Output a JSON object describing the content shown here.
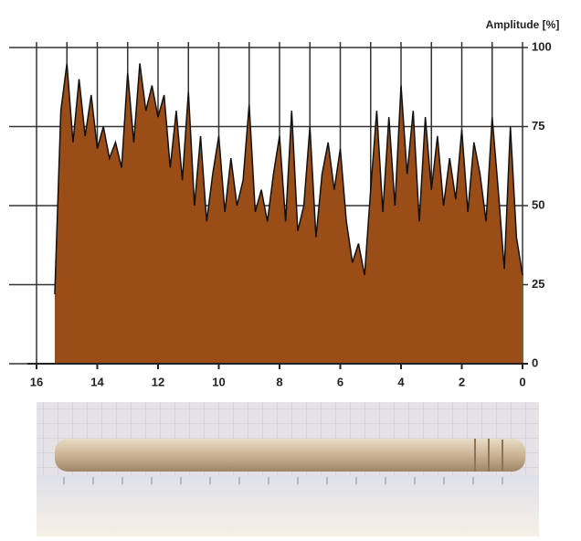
{
  "chart_data": {
    "type": "area",
    "y_label": "Amplitude [%]",
    "color": "#9a4d16",
    "line_color": "#111111",
    "x": [
      15.4,
      15.2,
      15.0,
      14.8,
      14.6,
      14.4,
      14.2,
      14.0,
      13.8,
      13.6,
      13.4,
      13.2,
      13.0,
      12.8,
      12.6,
      12.4,
      12.2,
      12.0,
      11.8,
      11.6,
      11.4,
      11.2,
      11.0,
      10.8,
      10.6,
      10.4,
      10.2,
      10.0,
      9.8,
      9.6,
      9.4,
      9.2,
      9.0,
      8.8,
      8.6,
      8.4,
      8.2,
      8.0,
      7.8,
      7.6,
      7.4,
      7.2,
      7.0,
      6.8,
      6.6,
      6.4,
      6.2,
      6.0,
      5.8,
      5.6,
      5.4,
      5.2,
      5.0,
      4.8,
      4.6,
      4.4,
      4.2,
      4.0,
      3.8,
      3.6,
      3.4,
      3.2,
      3.0,
      2.8,
      2.6,
      2.4,
      2.2,
      2.0,
      1.8,
      1.6,
      1.4,
      1.2,
      1.0,
      0.8,
      0.6,
      0.4,
      0.2,
      0.0
    ],
    "values": [
      22,
      80,
      95,
      70,
      90,
      72,
      85,
      68,
      75,
      65,
      70,
      62,
      92,
      70,
      95,
      80,
      88,
      78,
      85,
      62,
      80,
      58,
      86,
      50,
      72,
      45,
      60,
      72,
      48,
      65,
      50,
      58,
      82,
      48,
      55,
      45,
      60,
      72,
      45,
      80,
      42,
      50,
      75,
      40,
      60,
      70,
      55,
      68,
      45,
      32,
      38,
      28,
      55,
      80,
      48,
      78,
      50,
      88,
      60,
      80,
      45,
      78,
      55,
      72,
      50,
      65,
      52,
      74,
      48,
      70,
      60,
      45,
      78,
      55,
      30,
      75,
      40,
      28
    ],
    "xlim": [
      16,
      0
    ],
    "ylim": [
      0,
      100
    ],
    "xticks": [
      16,
      14,
      12,
      10,
      8,
      6,
      4,
      2,
      0
    ],
    "xgrid": [
      16,
      15,
      14,
      13,
      12,
      11,
      10,
      9,
      8,
      7,
      6,
      5,
      4,
      3,
      2,
      1,
      0
    ],
    "yticks": [
      0,
      25,
      50,
      75,
      100
    ],
    "grid": true
  }
}
